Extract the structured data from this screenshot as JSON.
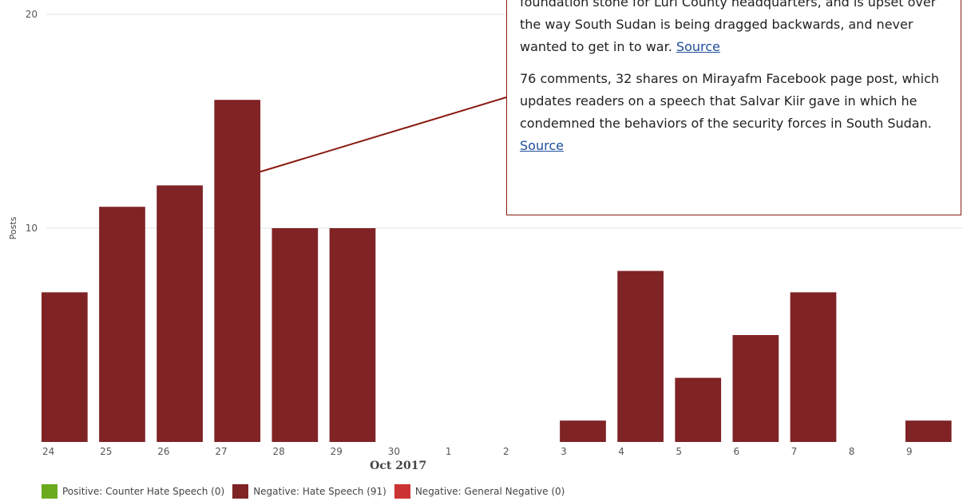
{
  "chart_data": {
    "type": "bar",
    "ylabel": "Posts",
    "xlabel": "Oct 2017",
    "ylim": [
      0,
      20
    ],
    "yticks": [
      10,
      20
    ],
    "grid": true,
    "categories": [
      "24",
      "25",
      "26",
      "27",
      "28",
      "29",
      "30",
      "1",
      "2",
      "3",
      "4",
      "5",
      "6",
      "7",
      "8",
      "9"
    ],
    "series": [
      {
        "name": "Negative: Hate Speech (91)",
        "color": "#7f2325",
        "values": [
          7,
          11,
          12,
          16,
          10,
          10,
          0,
          0,
          0,
          1,
          8,
          3,
          5,
          7,
          0,
          1
        ]
      }
    ],
    "legend": [
      {
        "label": "Positive: Counter Hate Speech (0)",
        "color": "#6aab1e"
      },
      {
        "label": "Negative: Hate Speech (91)",
        "color": "#7f2325"
      },
      {
        "label": "Negative: General Negative (0)",
        "color": "#cc3333"
      }
    ],
    "legend_position": "bottom-left",
    "tooltip_category": "27"
  },
  "tooltip": {
    "para1_text": "foundation stone for Luri County headquarters, and is upset over the way South Sudan is being dragged backwards, and never wanted to get in to war.",
    "para1_link": "Source",
    "para2_text": "76 comments, 32 shares on Mirayafm Facebook page post, which updates readers on a speech that Salvar Kiir gave in which he condemned the behaviors of the security forces in South Sudan.",
    "para2_link": "Source",
    "border_color": "#8b1a10"
  }
}
